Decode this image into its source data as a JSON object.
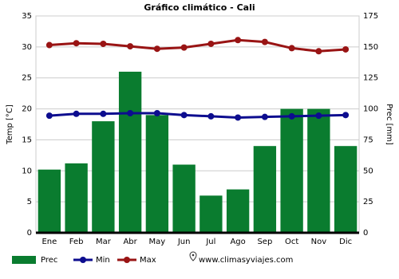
{
  "chart_data": {
    "type": "bar",
    "title": "Gráfico climático - Cali",
    "ylabel": "Temp [°C]",
    "y2label": "Prec [mm]",
    "categories": [
      "Ene",
      "Feb",
      "Mar",
      "Abr",
      "May",
      "Jun",
      "Jul",
      "Ago",
      "Sep",
      "Oct",
      "Nov",
      "Dic"
    ],
    "ylim": [
      0,
      35
    ],
    "yticks": [
      0,
      5,
      10,
      15,
      20,
      25,
      30,
      35
    ],
    "y2lim": [
      0,
      175
    ],
    "y2ticks": [
      0,
      25,
      50,
      75,
      100,
      125,
      150,
      175
    ],
    "grid": true,
    "series": [
      {
        "name": "Prec",
        "type": "bar",
        "axis": "y2",
        "color": "#0a7c2f",
        "values": [
          51,
          56,
          90,
          130,
          95,
          55,
          30,
          35,
          70,
          100,
          100,
          70
        ]
      },
      {
        "name": "Min",
        "type": "line",
        "color": "#0d0d8f",
        "values": [
          18.9,
          19.2,
          19.2,
          19.3,
          19.3,
          19.0,
          18.8,
          18.6,
          18.7,
          18.8,
          18.9,
          19.0
        ]
      },
      {
        "name": "Max",
        "type": "line",
        "color": "#991414",
        "values": [
          30.3,
          30.6,
          30.5,
          30.1,
          29.7,
          29.9,
          30.5,
          31.1,
          30.8,
          29.8,
          29.3,
          29.6
        ]
      }
    ],
    "source": "www.climasyviajes.com"
  }
}
